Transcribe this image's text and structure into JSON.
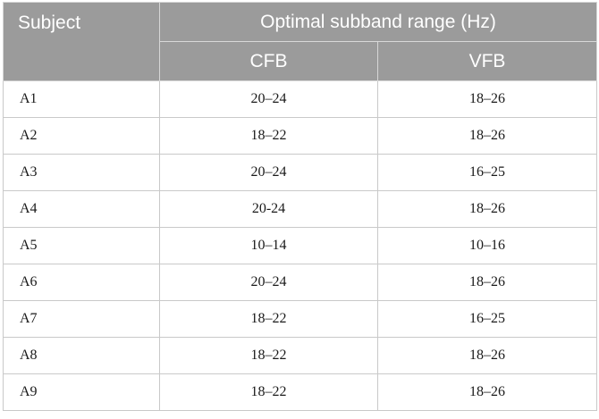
{
  "table": {
    "header": {
      "subject": "Subject",
      "group": "Optimal subband range (Hz)",
      "cfb": "CFB",
      "vfb": "VFB"
    },
    "rows": [
      {
        "subject": "A1",
        "cfb": "20–24",
        "vfb": "18–26"
      },
      {
        "subject": "A2",
        "cfb": "18–22",
        "vfb": "18–26"
      },
      {
        "subject": "A3",
        "cfb": "20–24",
        "vfb": "16–25"
      },
      {
        "subject": "A4",
        "cfb": "20-24",
        "vfb": "18–26"
      },
      {
        "subject": "A5",
        "cfb": "10–14",
        "vfb": "10–16"
      },
      {
        "subject": "A6",
        "cfb": "20–24",
        "vfb": "18–26"
      },
      {
        "subject": "A7",
        "cfb": "18–22",
        "vfb": "16–25"
      },
      {
        "subject": "A8",
        "cfb": "18–22",
        "vfb": "18–26"
      },
      {
        "subject": "A9",
        "cfb": "18–22",
        "vfb": "18–26"
      }
    ]
  }
}
